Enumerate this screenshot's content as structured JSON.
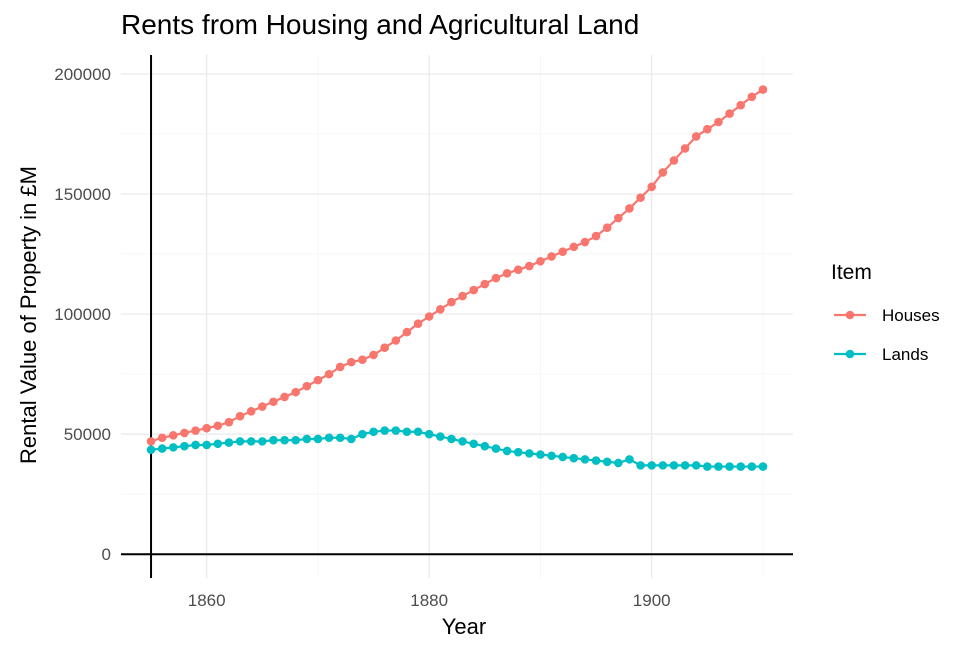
{
  "chart_data": {
    "type": "line",
    "title": "Rents from Housing and Agricultural Land",
    "xlabel": "Year",
    "ylabel": "Rental Value of Property in £M",
    "xlim": [
      1852.3,
      1912.7
    ],
    "ylim": [
      -9900,
      207900
    ],
    "x_ticks": [
      1860,
      1880,
      1900
    ],
    "x_tick_labels": [
      "1860",
      "1880",
      "1900"
    ],
    "y_ticks": [
      0,
      50000,
      100000,
      150000,
      200000
    ],
    "y_tick_labels": [
      "0",
      "50000",
      "100000",
      "150000",
      "200000"
    ],
    "reference_lines": {
      "vline_x": 1855,
      "hline_y": 0
    },
    "legend": {
      "title": "Item",
      "position": "right"
    },
    "x": [
      1855,
      1856,
      1857,
      1858,
      1859,
      1860,
      1861,
      1862,
      1863,
      1864,
      1865,
      1866,
      1867,
      1868,
      1869,
      1870,
      1871,
      1872,
      1873,
      1874,
      1875,
      1876,
      1877,
      1878,
      1879,
      1880,
      1881,
      1882,
      1883,
      1884,
      1885,
      1886,
      1887,
      1888,
      1889,
      1890,
      1891,
      1892,
      1893,
      1894,
      1895,
      1896,
      1897,
      1898,
      1899,
      1900,
      1901,
      1902,
      1903,
      1904,
      1905,
      1906,
      1907,
      1908,
      1909,
      1910
    ],
    "series": [
      {
        "name": "Houses",
        "color": "#F8766D",
        "values": [
          47000,
          48500,
          49500,
          50500,
          51500,
          52500,
          53500,
          55000,
          57500,
          59500,
          61500,
          63500,
          65500,
          67500,
          70000,
          72500,
          75000,
          78000,
          80000,
          81000,
          83000,
          86000,
          89000,
          92500,
          96000,
          99000,
          102000,
          105000,
          107500,
          110000,
          112500,
          115000,
          117000,
          118500,
          120000,
          122000,
          124000,
          126000,
          128000,
          130000,
          132500,
          136000,
          140000,
          144000,
          148500,
          153000,
          159000,
          164000,
          169000,
          174000,
          177000,
          180000,
          183500,
          187000,
          190500,
          193500
        ]
      },
      {
        "name": "Lands",
        "color": "#00BFC4",
        "values": [
          43500,
          44000,
          44500,
          45000,
          45500,
          45500,
          46000,
          46500,
          47000,
          47000,
          47000,
          47500,
          47500,
          47500,
          48000,
          48000,
          48500,
          48500,
          48000,
          50000,
          51000,
          51500,
          51500,
          51000,
          51000,
          50000,
          49000,
          48000,
          47000,
          46000,
          45000,
          44000,
          43000,
          42500,
          42000,
          41500,
          41000,
          40500,
          40000,
          39500,
          39000,
          38500,
          38000,
          39500,
          37000,
          37000,
          37000,
          37000,
          37000,
          37000,
          36500,
          36500,
          36500,
          36500,
          36500,
          36500
        ]
      }
    ]
  }
}
